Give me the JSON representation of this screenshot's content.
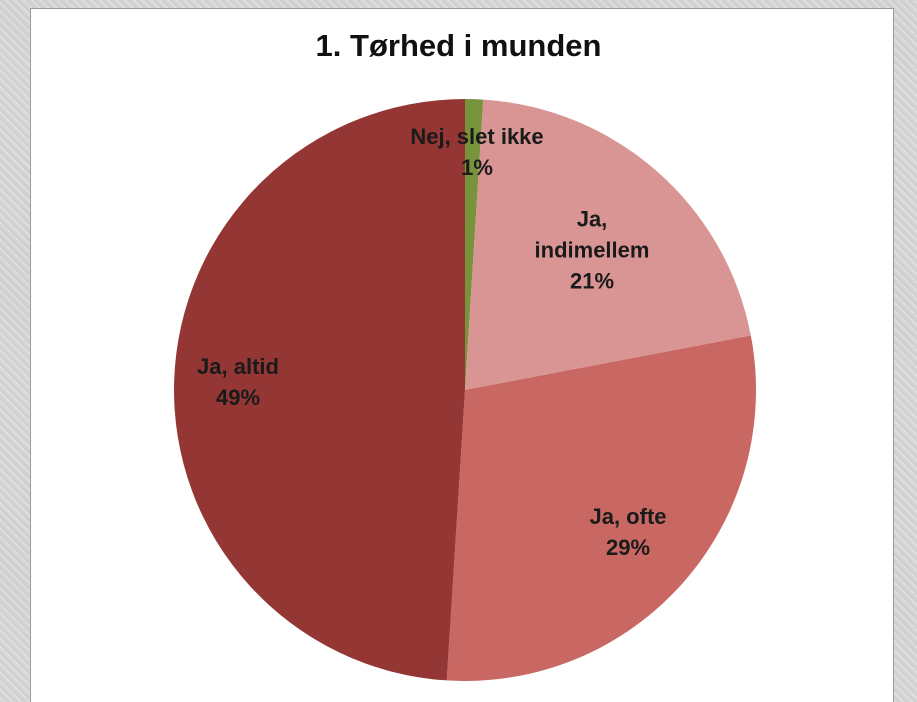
{
  "chart_data": {
    "type": "pie",
    "title": "1. Tørhed i munden",
    "categories": [
      "Nej, slet ikke",
      "Ja, indimellem",
      "Ja, ofte",
      "Ja, altid"
    ],
    "values": [
      1,
      21,
      29,
      49
    ],
    "value_labels": [
      "1%",
      "21%",
      "29%",
      "49%"
    ],
    "colors": [
      "#77933c",
      "#d99594",
      "#c96763",
      "#943634"
    ]
  }
}
